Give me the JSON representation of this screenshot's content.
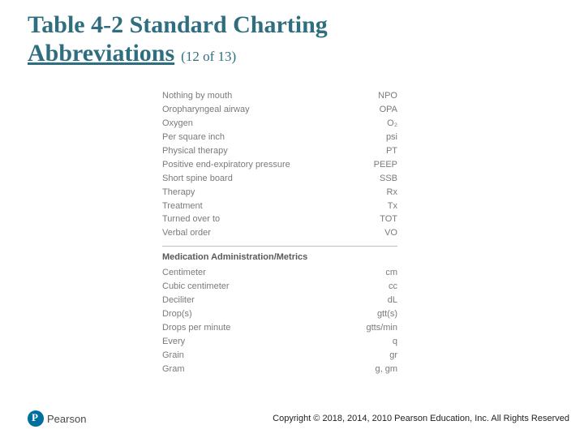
{
  "title": {
    "line1": "Table 4-2 Standard Charting",
    "line2": "Abbreviations",
    "count": "(12 of 13)",
    "color": "#2e6e7e",
    "main_fontsize": 30,
    "count_fontsize": 17
  },
  "table": {
    "text_color": "#7a7a7a",
    "header_color": "#5a5a5a",
    "divider_color": "#bdbdbd",
    "fontsize": 11,
    "rows1": [
      {
        "term": "Nothing by mouth",
        "abbr": "NPO"
      },
      {
        "term": "Oropharyngeal airway",
        "abbr": "OPA"
      },
      {
        "term": "Oxygen",
        "abbr": "O₂"
      },
      {
        "term": "Per square inch",
        "abbr": "psi"
      },
      {
        "term": "Physical therapy",
        "abbr": "PT"
      },
      {
        "term": "Positive end-expiratory pressure",
        "abbr": "PEEP"
      },
      {
        "term": "Short spine board",
        "abbr": "SSB"
      },
      {
        "term": "Therapy",
        "abbr": "Rx"
      },
      {
        "term": "Treatment",
        "abbr": "Tx"
      },
      {
        "term": "Turned over to",
        "abbr": "TOT"
      },
      {
        "term": "Verbal order",
        "abbr": "VO"
      }
    ],
    "section_header": "Medication Administration/Metrics",
    "rows2": [
      {
        "term": "Centimeter",
        "abbr": "cm"
      },
      {
        "term": "Cubic centimeter",
        "abbr": "cc"
      },
      {
        "term": "Deciliter",
        "abbr": "dL"
      },
      {
        "term": "Drop(s)",
        "abbr": "gtt(s)"
      },
      {
        "term": "Drops per minute",
        "abbr": "gtts/min"
      },
      {
        "term": "Every",
        "abbr": "q"
      },
      {
        "term": "Grain",
        "abbr": "gr"
      },
      {
        "term": "Gram",
        "abbr": "g, gm"
      }
    ]
  },
  "footer": {
    "brand": "Pearson",
    "brand_color": "#006f9e",
    "copyright": "Copyright © 2018, 2014, 2010 Pearson Education, Inc. All Rights Reserved"
  }
}
